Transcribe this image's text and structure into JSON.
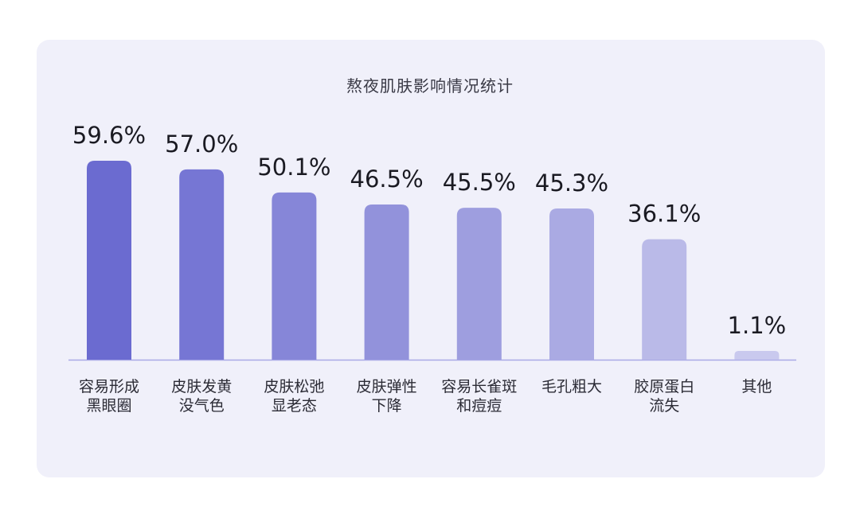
{
  "chart_data": {
    "type": "bar",
    "title": "熬夜肌肤影响情况统计",
    "categories": [
      [
        "容易形成",
        "黑眼圈"
      ],
      [
        "皮肤发黄",
        "没气色"
      ],
      [
        "皮肤松弛",
        "显老态"
      ],
      [
        "皮肤弹性",
        "下降"
      ],
      [
        "容易长雀斑",
        "和痘痘"
      ],
      [
        "毛孔粗大"
      ],
      [
        "胶原蛋白",
        "流失"
      ],
      [
        "其他"
      ]
    ],
    "values": [
      59.6,
      57.0,
      50.1,
      46.5,
      45.5,
      45.3,
      36.1,
      1.1
    ],
    "value_labels": [
      "59.6%",
      "57.0%",
      "50.1%",
      "46.5%",
      "45.5%",
      "45.3%",
      "36.1%",
      "1.1%"
    ],
    "bar_colors": [
      "#6b6bd0",
      "#7676d4",
      "#8686d8",
      "#9292db",
      "#9e9edf",
      "#aaaae3",
      "#babae8",
      "#c9c9ee"
    ],
    "baseline_color": "#a9a9e6",
    "grid": false,
    "legend": "none"
  }
}
